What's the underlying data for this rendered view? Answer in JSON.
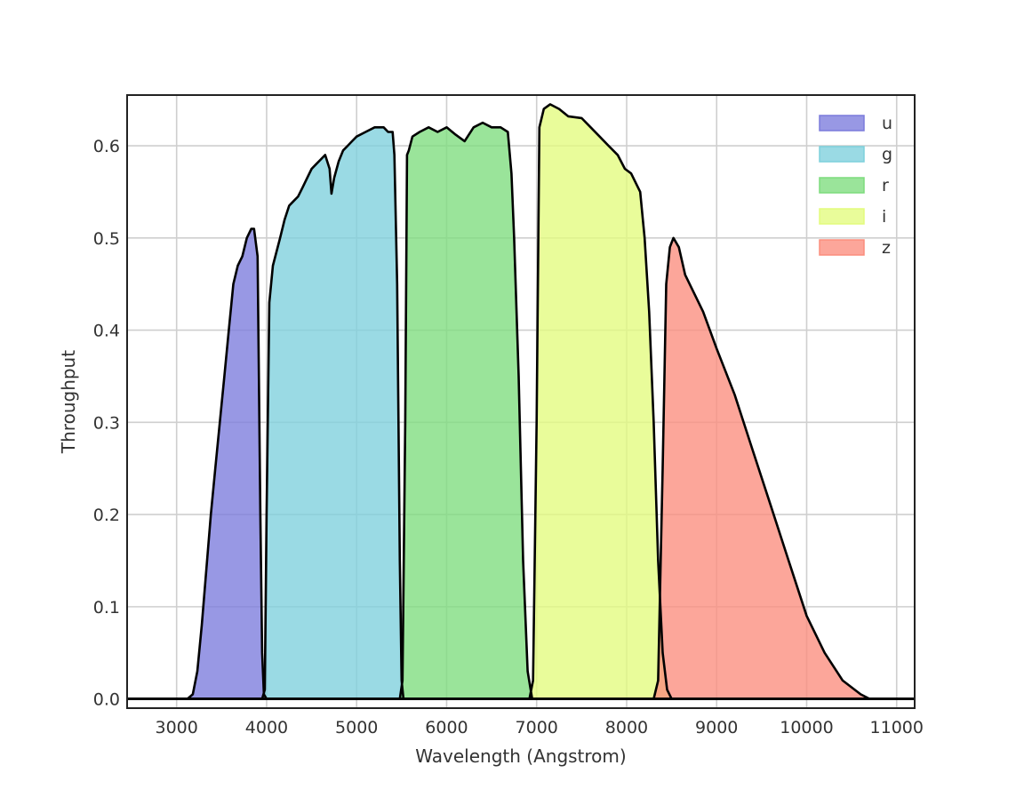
{
  "chart_data": {
    "type": "area",
    "title": "",
    "xlabel": "Wavelength (Angstrom)",
    "ylabel": "Throughput",
    "xlim": [
      2450,
      11200
    ],
    "ylim": [
      -0.01,
      0.655
    ],
    "xticks": [
      3000,
      4000,
      5000,
      6000,
      7000,
      8000,
      9000,
      10000,
      11000
    ],
    "xtick_labels": [
      "3000",
      "4000",
      "5000",
      "6000",
      "7000",
      "8000",
      "9000",
      "10000",
      "11000"
    ],
    "yticks": [
      0.0,
      0.1,
      0.2,
      0.3,
      0.4,
      0.5,
      0.6
    ],
    "ytick_labels": [
      "0.0",
      "0.1",
      "0.2",
      "0.3",
      "0.4",
      "0.5",
      "0.6"
    ],
    "grid": true,
    "legend_position": "top-right",
    "series": [
      {
        "name": "u",
        "color": "#7b7bdc",
        "points": [
          [
            2450,
            0
          ],
          [
            3120,
            0
          ],
          [
            3180,
            0.005
          ],
          [
            3230,
            0.03
          ],
          [
            3280,
            0.08
          ],
          [
            3330,
            0.14
          ],
          [
            3380,
            0.2
          ],
          [
            3430,
            0.25
          ],
          [
            3480,
            0.3
          ],
          [
            3530,
            0.35
          ],
          [
            3580,
            0.4
          ],
          [
            3630,
            0.45
          ],
          [
            3680,
            0.47
          ],
          [
            3730,
            0.48
          ],
          [
            3780,
            0.5
          ],
          [
            3830,
            0.51
          ],
          [
            3860,
            0.51
          ],
          [
            3900,
            0.48
          ],
          [
            3930,
            0.2
          ],
          [
            3950,
            0.05
          ],
          [
            3970,
            0.005
          ],
          [
            4000,
            0
          ],
          [
            11200,
            0
          ]
        ]
      },
      {
        "name": "g",
        "color": "#7dd0dc",
        "points": [
          [
            2450,
            0
          ],
          [
            3950,
            0
          ],
          [
            3980,
            0.01
          ],
          [
            4000,
            0.2
          ],
          [
            4030,
            0.43
          ],
          [
            4070,
            0.47
          ],
          [
            4150,
            0.5
          ],
          [
            4200,
            0.52
          ],
          [
            4250,
            0.535
          ],
          [
            4300,
            0.54
          ],
          [
            4350,
            0.545
          ],
          [
            4400,
            0.555
          ],
          [
            4450,
            0.565
          ],
          [
            4500,
            0.575
          ],
          [
            4550,
            0.58
          ],
          [
            4600,
            0.585
          ],
          [
            4650,
            0.59
          ],
          [
            4700,
            0.575
          ],
          [
            4720,
            0.548
          ],
          [
            4750,
            0.565
          ],
          [
            4800,
            0.583
          ],
          [
            4850,
            0.595
          ],
          [
            4900,
            0.6
          ],
          [
            4950,
            0.605
          ],
          [
            5000,
            0.61
          ],
          [
            5100,
            0.615
          ],
          [
            5200,
            0.62
          ],
          [
            5300,
            0.62
          ],
          [
            5350,
            0.615
          ],
          [
            5400,
            0.615
          ],
          [
            5420,
            0.59
          ],
          [
            5450,
            0.45
          ],
          [
            5480,
            0.15
          ],
          [
            5500,
            0.02
          ],
          [
            5520,
            0
          ],
          [
            11200,
            0
          ]
        ]
      },
      {
        "name": "r",
        "color": "#7ddc7d",
        "points": [
          [
            2450,
            0
          ],
          [
            5480,
            0
          ],
          [
            5510,
            0.02
          ],
          [
            5540,
            0.3
          ],
          [
            5560,
            0.59
          ],
          [
            5580,
            0.595
          ],
          [
            5620,
            0.61
          ],
          [
            5700,
            0.615
          ],
          [
            5800,
            0.62
          ],
          [
            5900,
            0.615
          ],
          [
            6000,
            0.62
          ],
          [
            6100,
            0.612
          ],
          [
            6200,
            0.605
          ],
          [
            6300,
            0.62
          ],
          [
            6400,
            0.625
          ],
          [
            6500,
            0.62
          ],
          [
            6600,
            0.62
          ],
          [
            6680,
            0.615
          ],
          [
            6720,
            0.57
          ],
          [
            6750,
            0.5
          ],
          [
            6800,
            0.35
          ],
          [
            6850,
            0.15
          ],
          [
            6900,
            0.03
          ],
          [
            6950,
            0
          ],
          [
            11200,
            0
          ]
        ]
      },
      {
        "name": "i",
        "color": "#e3fb7d",
        "points": [
          [
            2450,
            0
          ],
          [
            6920,
            0
          ],
          [
            6960,
            0.02
          ],
          [
            7000,
            0.3
          ],
          [
            7030,
            0.62
          ],
          [
            7080,
            0.64
          ],
          [
            7150,
            0.645
          ],
          [
            7250,
            0.64
          ],
          [
            7350,
            0.632
          ],
          [
            7500,
            0.63
          ],
          [
            7600,
            0.62
          ],
          [
            7700,
            0.61
          ],
          [
            7800,
            0.6
          ],
          [
            7900,
            0.59
          ],
          [
            7980,
            0.575
          ],
          [
            8050,
            0.57
          ],
          [
            8150,
            0.55
          ],
          [
            8200,
            0.5
          ],
          [
            8250,
            0.42
          ],
          [
            8300,
            0.3
          ],
          [
            8350,
            0.15
          ],
          [
            8400,
            0.05
          ],
          [
            8450,
            0.01
          ],
          [
            8500,
            0
          ],
          [
            11200,
            0
          ]
        ]
      },
      {
        "name": "z",
        "color": "#fb8d7d",
        "points": [
          [
            2450,
            0
          ],
          [
            8300,
            0
          ],
          [
            8350,
            0.02
          ],
          [
            8400,
            0.25
          ],
          [
            8440,
            0.45
          ],
          [
            8480,
            0.49
          ],
          [
            8520,
            0.5
          ],
          [
            8580,
            0.49
          ],
          [
            8650,
            0.46
          ],
          [
            8750,
            0.44
          ],
          [
            8850,
            0.42
          ],
          [
            9000,
            0.38
          ],
          [
            9200,
            0.33
          ],
          [
            9400,
            0.27
          ],
          [
            9600,
            0.21
          ],
          [
            9800,
            0.15
          ],
          [
            10000,
            0.09
          ],
          [
            10200,
            0.05
          ],
          [
            10400,
            0.02
          ],
          [
            10600,
            0.005
          ],
          [
            10700,
            0
          ],
          [
            11200,
            0
          ]
        ]
      }
    ]
  }
}
